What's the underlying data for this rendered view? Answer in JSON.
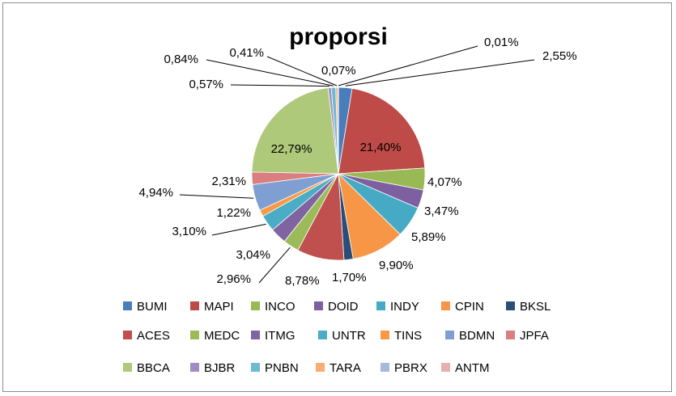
{
  "chart_data": {
    "type": "pie",
    "title": "proporsi",
    "categories": [
      "BUMI",
      "MAPI",
      "INCO",
      "DOID",
      "INDY",
      "CPIN",
      "BKSL",
      "ACES",
      "MEDC",
      "ITMG",
      "UNTR",
      "TINS",
      "BDMN",
      "JPFA",
      "BBCA",
      "BJBR",
      "PNBN",
      "TARA",
      "PBRX",
      "ANTM"
    ],
    "values": [
      2.55,
      21.4,
      4.07,
      3.47,
      5.89,
      9.9,
      1.7,
      8.78,
      2.96,
      3.04,
      3.1,
      1.22,
      4.94,
      2.31,
      22.79,
      0.57,
      0.84,
      0.41,
      0.07,
      0.01
    ],
    "value_labels": [
      "2,55%",
      "21,40%",
      "4,07%",
      "3,47%",
      "5,89%",
      "9,90%",
      "1,70%",
      "8,78%",
      "2,96%",
      "3,04%",
      "3,10%",
      "1,22%",
      "4,94%",
      "2,31%",
      "22,79%",
      "0,57%",
      "0,84%",
      "0,41%",
      "0,07%",
      "0,01%"
    ],
    "colors": [
      "#4a7ebb",
      "#be4b48",
      "#98b954",
      "#7d60a0",
      "#46aac5",
      "#f79646",
      "#2c4d75",
      "#c0504d",
      "#9bbb59",
      "#8064a2",
      "#4bacc6",
      "#f69a46",
      "#7f9fd3",
      "#d97f7f",
      "#afc97a",
      "#a08cc0",
      "#6fbad3",
      "#f9ad74",
      "#a5b9da",
      "#e6b0b0"
    ],
    "legend_position": "bottom"
  }
}
